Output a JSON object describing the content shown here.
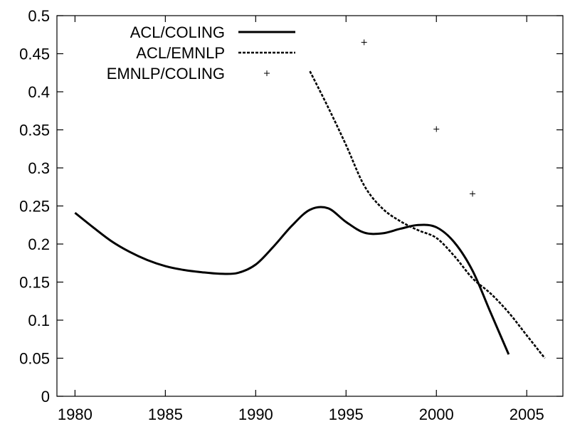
{
  "chart_data": {
    "type": "line",
    "title": "",
    "xlabel": "",
    "ylabel": "",
    "xlim": [
      1979,
      2007
    ],
    "ylim": [
      0,
      0.5
    ],
    "xticks": [
      1980,
      1985,
      1990,
      1995,
      2000,
      2005
    ],
    "yticks": [
      0,
      0.05,
      0.1,
      0.15,
      0.2,
      0.25,
      0.3,
      0.35,
      0.4,
      0.45,
      0.5
    ],
    "ytick_labels": [
      "0",
      "0.05",
      "0.1",
      "0.15",
      "0.2",
      "0.25",
      "0.3",
      "0.35",
      "0.4",
      "0.45",
      "0.5"
    ],
    "grid": false,
    "legend_position": "top-left",
    "series": [
      {
        "name": "ACL/COLING",
        "style": "solid",
        "marker": "none",
        "color": "#000000",
        "x": [
          1980,
          1981,
          1982,
          1983,
          1984,
          1985,
          1986,
          1987,
          1988,
          1989,
          1990,
          1991,
          1992,
          1993,
          1994,
          1995,
          1996,
          1997,
          1998,
          1999,
          2000,
          2001,
          2002,
          2003,
          2004
        ],
        "y": [
          0.241,
          0.222,
          0.204,
          0.19,
          0.179,
          0.171,
          0.166,
          0.163,
          0.161,
          0.162,
          0.173,
          0.197,
          0.224,
          0.245,
          0.247,
          0.229,
          0.215,
          0.214,
          0.22,
          0.225,
          0.222,
          0.202,
          0.165,
          0.11,
          0.055
        ]
      },
      {
        "name": "ACL/EMNLP",
        "style": "dashed",
        "marker": "none",
        "color": "#000000",
        "x": [
          1993,
          1994,
          1995,
          1996,
          1997,
          1998,
          1999,
          2000,
          2001,
          2002,
          2003,
          2004,
          2005,
          2006
        ],
        "y": [
          0.427,
          0.38,
          0.33,
          0.277,
          0.247,
          0.23,
          0.218,
          0.208,
          0.184,
          0.155,
          0.135,
          0.11,
          0.08,
          0.05
        ]
      },
      {
        "name": "EMNLP/COLING",
        "style": "none",
        "marker": "plus",
        "color": "#000000",
        "x": [
          1996,
          2000,
          2002
        ],
        "y": [
          0.465,
          0.351,
          0.266
        ]
      }
    ]
  }
}
